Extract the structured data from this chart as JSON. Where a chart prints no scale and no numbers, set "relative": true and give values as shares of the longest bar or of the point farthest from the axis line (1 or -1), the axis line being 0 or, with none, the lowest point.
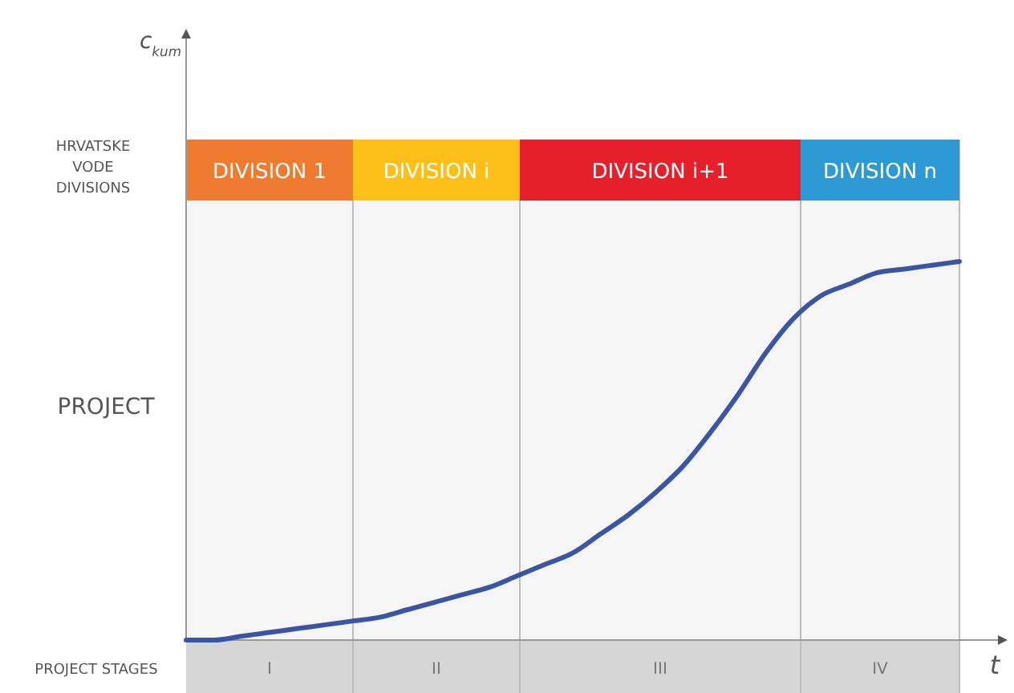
{
  "chart_data": {
    "type": "line",
    "relative": true,
    "xlabel": "t",
    "categories": [
      null,
      null,
      null,
      null,
      null,
      null,
      null,
      null,
      null,
      null,
      null,
      null,
      null,
      null,
      null,
      null,
      null,
      null,
      null,
      null,
      null,
      null,
      null,
      null,
      null,
      null,
      null,
      null,
      null
    ],
    "series": [
      {
        "color": "#3b55a5",
        "values": [
          0,
          0,
          0.01,
          0.02,
          0.03,
          0.04,
          0.05,
          0.06,
          0.08,
          0.1,
          0.12,
          0.14,
          0.17,
          0.2,
          0.23,
          0.28,
          0.33,
          0.39,
          0.46,
          0.55,
          0.65,
          0.76,
          0.85,
          0.91,
          0.94,
          0.97,
          0.98,
          0.99,
          1
        ]
      }
    ],
    "annotations": [
      "HRVATSKE VODE DIVISIONS",
      "DIVISION 1",
      "DIVISION i",
      "DIVISION i+1",
      "DIVISION n",
      "PROJECT",
      "PROJECT STAGES",
      "I",
      "II",
      "III",
      "IV",
      "c$_{kum}$"
    ]
  }
}
